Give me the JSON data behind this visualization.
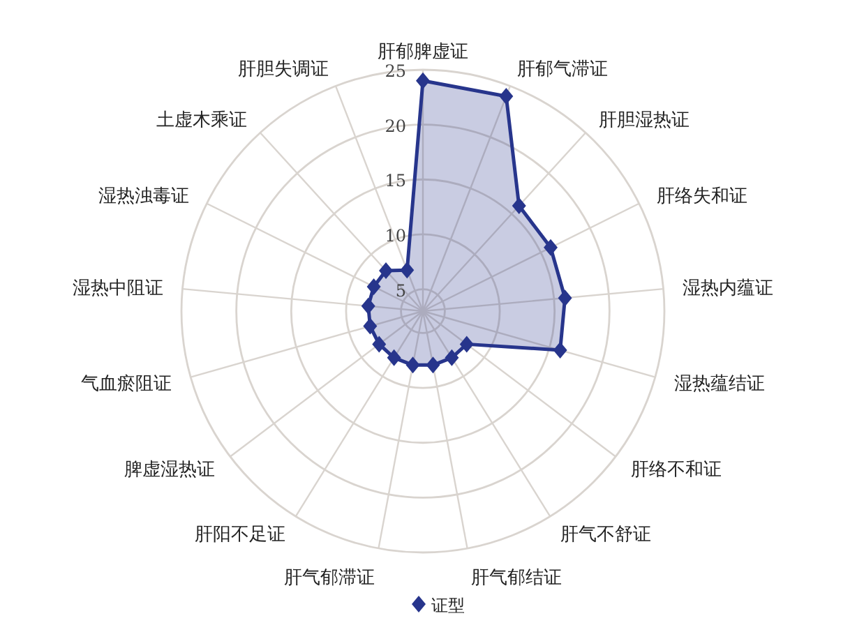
{
  "chart_data": {
    "type": "radar",
    "categories": [
      "肝郁脾虚证",
      "肝郁气滞证",
      "肝胆湿热证",
      "肝络失和证",
      "湿热内蕴证",
      "湿热蕴结证",
      "肝络不和证",
      "肝气不舒证",
      "肝气郁结证",
      "肝气郁滞证",
      "肝阳不足证",
      "脾虚湿热证",
      "气血瘀阻证",
      "湿热中阻证",
      "湿热浊毒证",
      "土虚木乘证",
      "肝胆失调证"
    ],
    "series": [
      {
        "name": "证型",
        "color": "#27358c",
        "values": [
          24,
          24,
          16,
          16,
          16,
          16,
          8,
          8,
          8,
          8,
          8,
          8,
          8,
          8,
          8,
          8,
          7
        ]
      }
    ],
    "ylim": [
      3,
      25
    ],
    "yticks": [
      5,
      10,
      15,
      20,
      25
    ],
    "grid": true,
    "legend": "bottom",
    "marker": "diamond"
  }
}
